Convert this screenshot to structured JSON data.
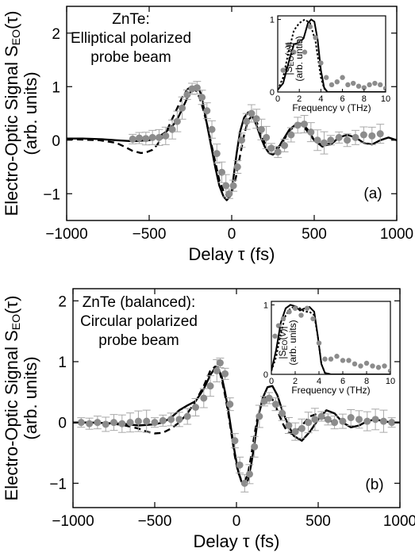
{
  "chart_data": [
    {
      "type": "line",
      "panel_label": "(a)",
      "annotation": [
        "ZnTe:",
        "Elliptical polarized",
        "probe beam"
      ],
      "xlabel": "Delay τ (fs)",
      "ylabel": [
        "Electro-Optic Signal S",
        "EO",
        "(τ)"
      ],
      "ylabel2": "(arb. units)",
      "xlim": [
        -1000,
        1000
      ],
      "ylim": [
        -1.5,
        2.5
      ],
      "xticks": [
        -1000,
        -500,
        0,
        500,
        1000
      ],
      "yticks": [
        -1,
        0,
        1,
        2
      ],
      "xtick_labels": [
        "−1000",
        "−500",
        "0",
        "500",
        "1000"
      ],
      "ytick_labels": [
        "−1",
        "0",
        "1",
        "2"
      ],
      "series": [
        {
          "style": "solid",
          "x": [
            -1000,
            -900,
            -800,
            -700,
            -600,
            -500,
            -450,
            -400,
            -350,
            -320,
            -290,
            -260,
            -240,
            -220,
            -200,
            -185,
            -170,
            -150,
            -125,
            -100,
            -75,
            -50,
            -30,
            -10,
            0,
            15,
            30,
            50,
            75,
            100,
            125,
            150,
            175,
            200,
            225,
            250,
            275,
            300,
            350,
            400,
            430,
            460,
            500,
            550,
            600,
            650,
            700,
            750,
            800,
            850,
            900,
            950,
            1000
          ],
          "y": [
            0.03,
            0.03,
            0.02,
            0.0,
            -0.02,
            0.0,
            0.05,
            0.15,
            0.3,
            0.45,
            0.65,
            0.85,
            0.95,
            1.0,
            0.97,
            0.85,
            0.62,
            0.3,
            -0.1,
            -0.5,
            -0.85,
            -1.05,
            -1.12,
            -1.05,
            -0.95,
            -0.6,
            -0.25,
            0.15,
            0.42,
            0.52,
            0.45,
            0.28,
            0.06,
            -0.12,
            -0.24,
            -0.27,
            -0.2,
            -0.05,
            0.2,
            0.32,
            0.3,
            0.2,
            0.0,
            -0.1,
            -0.08,
            0.05,
            0.1,
            0.05,
            -0.05,
            -0.08,
            0.0,
            0.05,
            0.0
          ]
        },
        {
          "style": "dashed",
          "x": [
            -1000,
            -900,
            -800,
            -700,
            -650,
            -600,
            -550,
            -520,
            -480,
            -450,
            -420,
            -390,
            -360,
            -330,
            -300,
            -270,
            -250,
            -230,
            -210,
            -190,
            -170,
            -150,
            -125,
            -100,
            -75,
            -50,
            -25,
            0,
            25,
            50,
            75,
            100,
            125,
            150,
            175,
            200,
            250,
            300,
            350,
            400,
            450,
            500,
            550,
            600,
            650,
            700
          ],
          "y": [
            0.02,
            0.01,
            0.0,
            -0.05,
            -0.12,
            -0.2,
            -0.24,
            -0.23,
            -0.18,
            -0.08,
            0.05,
            0.2,
            0.4,
            0.6,
            0.8,
            0.94,
            1.0,
            0.98,
            0.9,
            0.75,
            0.55,
            0.3,
            -0.05,
            -0.4,
            -0.75,
            -0.95,
            -1.05,
            -1.0,
            -0.7,
            -0.3,
            0.1,
            0.38,
            0.45,
            0.35,
            0.15,
            -0.05,
            -0.2,
            -0.08,
            0.18,
            0.3,
            0.2,
            0.0,
            -0.12,
            -0.05,
            0.05,
            0.05
          ]
        },
        {
          "style": "points",
          "x": [
            -600,
            -560,
            -520,
            -480,
            -440,
            -400,
            -360,
            -330,
            -300,
            -270,
            -240,
            -210,
            -180,
            -150,
            -120,
            -90,
            -60,
            -35,
            -15,
            10,
            35,
            60,
            90,
            120,
            150,
            180,
            210,
            240,
            280,
            320,
            360,
            400,
            440,
            480,
            520,
            560,
            600,
            650,
            700,
            750,
            800,
            850,
            900
          ],
          "y": [
            0.02,
            0.04,
            0.03,
            0.05,
            0.05,
            0.08,
            0.2,
            0.35,
            0.6,
            0.85,
            0.96,
            0.98,
            0.8,
            0.55,
            0.2,
            -0.25,
            -0.6,
            -0.85,
            -1.0,
            -0.85,
            -0.5,
            0.0,
            0.35,
            0.5,
            0.4,
            0.2,
            0.05,
            -0.15,
            -0.22,
            -0.1,
            0.1,
            0.28,
            0.3,
            0.15,
            0.0,
            -0.05,
            0.0,
            0.05,
            0.0,
            0.05,
            0.1,
            0.08,
            0.12
          ]
        }
      ],
      "inset": {
        "xlabel": "Frequency ν (THz)",
        "ylabel": [
          "|S",
          "EO",
          "(ν)|"
        ],
        "ylabel2": "(arb. untis)",
        "xlim": [
          0,
          10
        ],
        "ylim": [
          0,
          1.05
        ],
        "xticks": [
          0,
          2,
          4,
          6,
          8,
          10
        ],
        "yticks": [
          0,
          1
        ],
        "xtick_labels": [
          "0",
          "2",
          "4",
          "6",
          "8",
          "10"
        ],
        "ytick_labels": [
          "0",
          "1"
        ],
        "series": [
          {
            "style": "solid",
            "x": [
              0,
              0.5,
              1,
              1.5,
              2,
              2.4,
              2.8,
              3.1,
              3.4,
              3.7,
              4.0,
              4.3,
              4.6,
              5,
              10
            ],
            "y": [
              0.03,
              0.12,
              0.4,
              0.66,
              0.68,
              0.74,
              0.95,
              1.0,
              0.97,
              0.72,
              0.3,
              0.06,
              0.0,
              0.0,
              0.0
            ]
          },
          {
            "style": "dotted",
            "x": [
              0,
              0.5,
              1,
              1.5,
              2,
              2.5,
              3.0,
              3.5,
              3.8,
              4.0,
              4.3,
              4.6,
              5,
              10
            ],
            "y": [
              0.03,
              0.2,
              0.55,
              0.85,
              0.95,
              1.0,
              0.95,
              0.7,
              0.4,
              0.2,
              0.05,
              0.0,
              0.0,
              0.0
            ]
          },
          {
            "style": "points",
            "x": [
              0.5,
              1,
              1.5,
              2,
              2.5,
              3,
              3.5,
              4,
              4.5,
              5,
              5.5,
              6,
              6.5,
              7,
              7.5,
              8,
              8.5,
              9,
              9.5,
              10
            ],
            "y": [
              0.3,
              0.65,
              0.55,
              0.7,
              0.55,
              0.9,
              0.75,
              0.4,
              0.2,
              0.1,
              0.14,
              0.2,
              0.1,
              0.12,
              0.08,
              0.06,
              0.1,
              0.12,
              0.1,
              0.05
            ]
          }
        ]
      }
    },
    {
      "type": "line",
      "panel_label": "(b)",
      "annotation": [
        "ZnTe (balanced):",
        "Circular polarized",
        "probe beam"
      ],
      "xlabel": "Delay τ (fs)",
      "ylabel": [
        "Electro-Optic Signal S",
        "EO",
        "(τ)"
      ],
      "ylabel2": "(arb. units)",
      "xlim": [
        -1000,
        1000
      ],
      "ylim": [
        -1.4,
        2.2
      ],
      "xticks": [
        -1000,
        -500,
        0,
        500,
        1000
      ],
      "yticks": [
        -1,
        0,
        1,
        2
      ],
      "xtick_labels": [
        "−1000",
        "−500",
        "0",
        "500",
        "1000"
      ],
      "ytick_labels": [
        "−1",
        "0",
        "1",
        "2"
      ],
      "series": [
        {
          "style": "solid",
          "x": [
            -1000,
            -900,
            -800,
            -700,
            -600,
            -500,
            -450,
            -400,
            -350,
            -300,
            -250,
            -200,
            -160,
            -130,
            -110,
            -90,
            -70,
            -50,
            -30,
            -10,
            10,
            30,
            50,
            70,
            90,
            110,
            130,
            160,
            190,
            220,
            250,
            280,
            310,
            350,
            400,
            450,
            500,
            550,
            600,
            650,
            700,
            750,
            800,
            850,
            900,
            950,
            1000
          ],
          "y": [
            0.0,
            0.0,
            -0.01,
            -0.02,
            -0.05,
            -0.03,
            0.0,
            0.08,
            0.2,
            0.28,
            0.35,
            0.55,
            0.78,
            0.9,
            0.88,
            0.75,
            0.5,
            0.2,
            -0.15,
            -0.5,
            -0.8,
            -0.97,
            -1.02,
            -0.95,
            -0.7,
            -0.35,
            0.05,
            0.4,
            0.58,
            0.6,
            0.45,
            0.2,
            0.0,
            -0.22,
            -0.3,
            -0.15,
            0.05,
            0.2,
            0.15,
            0.0,
            -0.08,
            -0.05,
            0.02,
            0.05,
            0.02,
            0.0,
            0.0
          ]
        },
        {
          "style": "dashed",
          "x": [
            -1000,
            -900,
            -800,
            -700,
            -600,
            -550,
            -500,
            -450,
            -400,
            -350,
            -300,
            -250,
            -200,
            -160,
            -130,
            -110,
            -90,
            -70,
            -50,
            -30,
            -10,
            10,
            30,
            50,
            70,
            90,
            110,
            130,
            160,
            190,
            220,
            250,
            280,
            310,
            350,
            400,
            450,
            500,
            550,
            600
          ],
          "y": [
            0.0,
            0.0,
            -0.01,
            -0.04,
            -0.1,
            -0.15,
            -0.18,
            -0.17,
            -0.1,
            0.0,
            0.15,
            0.35,
            0.6,
            0.85,
            0.92,
            0.9,
            0.7,
            0.45,
            0.15,
            -0.2,
            -0.55,
            -0.82,
            -0.95,
            -0.97,
            -0.85,
            -0.55,
            -0.2,
            0.1,
            0.35,
            0.45,
            0.38,
            0.2,
            0.0,
            -0.15,
            -0.2,
            -0.05,
            0.1,
            0.15,
            0.05,
            0.0
          ]
        },
        {
          "style": "points",
          "x": [
            -950,
            -900,
            -850,
            -800,
            -750,
            -700,
            -650,
            -600,
            -550,
            -500,
            -450,
            -400,
            -350,
            -300,
            -250,
            -200,
            -160,
            -120,
            -100,
            -70,
            -40,
            -10,
            20,
            50,
            80,
            110,
            140,
            170,
            200,
            240,
            280,
            320,
            360,
            400,
            440,
            480,
            520,
            560,
            600,
            650,
            700,
            750,
            800,
            850,
            900,
            950
          ],
          "y": [
            0.0,
            -0.02,
            0.0,
            -0.03,
            0.0,
            -0.02,
            0.0,
            0.02,
            0.02,
            0.0,
            0.03,
            0.05,
            0.05,
            0.1,
            0.25,
            0.4,
            0.6,
            0.85,
            0.98,
            0.8,
            0.3,
            -0.3,
            -0.7,
            -1.0,
            -0.85,
            -0.4,
            0.1,
            0.35,
            0.4,
            0.3,
            0.15,
            -0.05,
            -0.15,
            -0.1,
            0.0,
            0.05,
            0.1,
            0.05,
            0.0,
            0.02,
            0.08,
            0.05,
            0.02,
            0.05,
            0.02,
            0.0
          ]
        }
      ],
      "inset": {
        "xlabel": "Frequency ν (THz)",
        "ylabel": [
          "|S",
          "EO",
          "(ν)|"
        ],
        "ylabel2": "(arb. units)",
        "xlim": [
          0,
          10
        ],
        "ylim": [
          0,
          1.05
        ],
        "xticks": [
          0,
          2,
          4,
          6,
          8,
          10
        ],
        "yticks": [
          0,
          1
        ],
        "xtick_labels": [
          "0",
          "2",
          "4",
          "6",
          "8",
          "10"
        ],
        "ytick_labels": [
          "0",
          "1"
        ],
        "series": [
          {
            "style": "solid",
            "x": [
              0,
              0.4,
              0.8,
              1.2,
              1.6,
              2.0,
              2.4,
              2.8,
              3.2,
              3.6,
              3.9,
              4.2,
              4.5,
              5,
              10
            ],
            "y": [
              0.05,
              0.35,
              0.75,
              0.95,
              1.0,
              0.98,
              0.92,
              0.95,
              0.97,
              0.9,
              0.55,
              0.15,
              0.02,
              0.0,
              0.0
            ]
          },
          {
            "style": "dotted",
            "x": [
              0,
              0.4,
              0.8,
              1.2,
              1.6,
              2.0,
              2.4,
              2.8,
              3.2,
              3.6,
              3.9,
              4.2,
              4.5,
              5,
              10
            ],
            "y": [
              0.05,
              0.25,
              0.6,
              0.85,
              0.95,
              0.98,
              0.95,
              0.9,
              0.9,
              0.85,
              0.55,
              0.15,
              0.02,
              0.0,
              0.0
            ]
          },
          {
            "style": "points",
            "x": [
              0.3,
              0.6,
              1,
              1.5,
              2,
              2.5,
              3,
              3.5,
              4,
              4.5,
              5,
              5.5,
              6,
              6.5,
              7,
              7.5,
              8,
              8.5,
              9,
              9.5,
              10
            ],
            "y": [
              0.55,
              0.7,
              0.8,
              0.9,
              0.95,
              0.85,
              0.95,
              0.8,
              0.45,
              0.22,
              0.22,
              0.26,
              0.2,
              0.2,
              0.15,
              0.12,
              0.16,
              0.12,
              0.1,
              0.12,
              0.05
            ]
          }
        ]
      }
    }
  ]
}
